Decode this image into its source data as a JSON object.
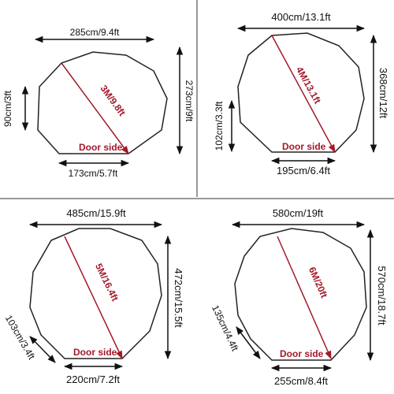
{
  "panels": [
    {
      "width": "285cm/9.4ft",
      "height": "273cm/9ft",
      "side": "90cm/3ft",
      "diagonal": "3M/9.8ft",
      "door": "Door side",
      "door_width": "173cm/5.7ft"
    },
    {
      "width": "400cm/13.1ft",
      "height": "368cm/12ft",
      "side": "102cm/3.3ft",
      "diagonal": "4M/13.1ft",
      "door": "Door side",
      "door_width": "195cm/6.4ft"
    },
    {
      "width": "485cm/15.9ft",
      "height": "472cm/15.5ft",
      "side": "103cm/3.4ft",
      "diagonal": "5M/16.4ft",
      "door": "Door side",
      "door_width": "220cm/7.2ft"
    },
    {
      "width": "580cm/19ft",
      "height": "570cm/18.7ft",
      "side": "135cm/4.4ft",
      "diagonal": "6M/20ft",
      "door": "Door side",
      "door_width": "255cm/8.4ft"
    }
  ]
}
